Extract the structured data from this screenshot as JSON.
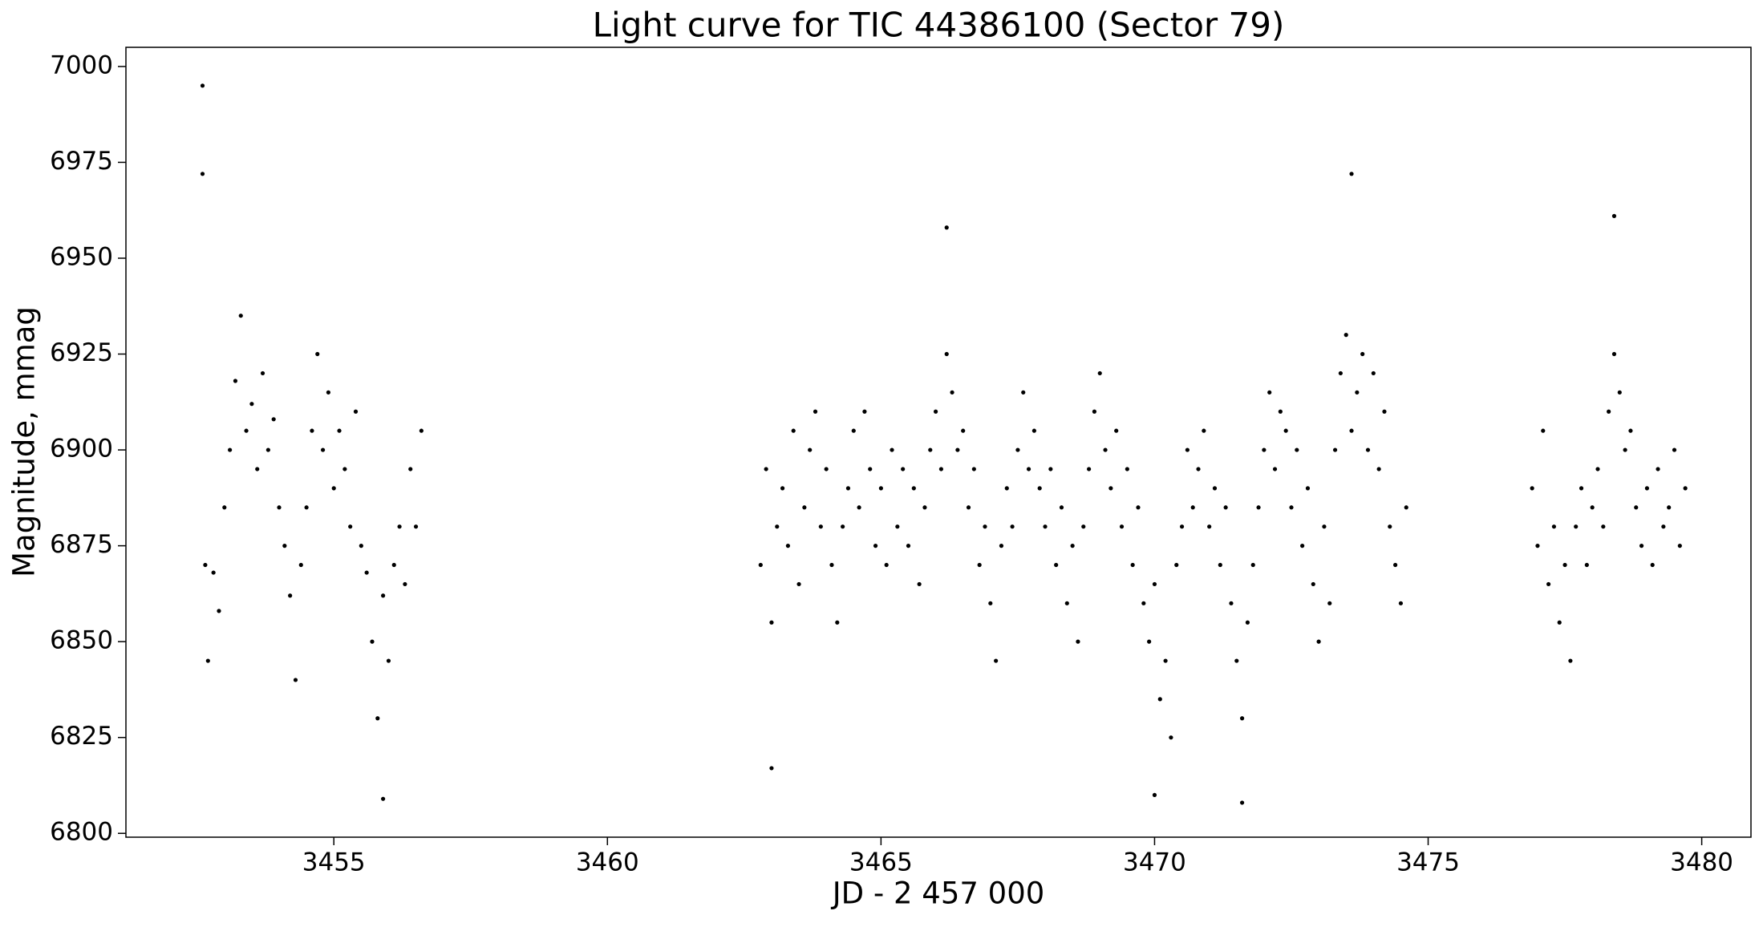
{
  "chart_data": {
    "type": "scatter",
    "title": "Light curve for TIC 44386100 (Sector 79)",
    "x_label": "JD - 2 457 000",
    "y_label": "Magnitude, mmag",
    "color": "#000000",
    "xlim": [
      3451.2,
      3480.9
    ],
    "ylim": [
      6799,
      7005
    ],
    "xticks": [
      3455,
      3460,
      3465,
      3470,
      3475,
      3480
    ],
    "yticks": [
      6800,
      6825,
      6850,
      6875,
      6900,
      6925,
      6950,
      6975,
      7000
    ],
    "grid": false,
    "x": [
      3452.6,
      3452.6,
      3452.65,
      3452.7,
      3452.8,
      3452.9,
      3453.0,
      3453.1,
      3453.2,
      3453.3,
      3453.4,
      3453.5,
      3453.6,
      3453.7,
      3453.8,
      3453.9,
      3454.0,
      3454.1,
      3454.2,
      3454.3,
      3454.4,
      3454.5,
      3454.6,
      3454.7,
      3454.8,
      3454.9,
      3455.0,
      3455.1,
      3455.2,
      3455.3,
      3455.4,
      3455.5,
      3455.6,
      3455.7,
      3455.8,
      3455.9,
      3456.0,
      3456.1,
      3456.2,
      3456.3,
      3456.4,
      3456.5,
      3456.6,
      3462.8,
      3462.9,
      3463.0,
      3463.1,
      3463.2,
      3463.3,
      3463.4,
      3463.5,
      3463.6,
      3463.7,
      3463.8,
      3463.9,
      3464.0,
      3464.1,
      3464.2,
      3464.3,
      3464.4,
      3464.5,
      3464.6,
      3464.7,
      3464.8,
      3464.9,
      3465.0,
      3465.1,
      3465.2,
      3465.3,
      3465.4,
      3465.5,
      3465.6,
      3465.7,
      3465.8,
      3465.9,
      3466.0,
      3466.1,
      3466.2,
      3466.3,
      3466.4,
      3466.5,
      3466.6,
      3466.7,
      3466.8,
      3466.9,
      3467.0,
      3467.1,
      3467.2,
      3467.3,
      3467.4,
      3467.5,
      3467.6,
      3467.7,
      3467.8,
      3467.9,
      3468.0,
      3468.1,
      3468.2,
      3468.3,
      3468.4,
      3468.5,
      3468.6,
      3468.7,
      3468.8,
      3468.9,
      3469.0,
      3469.1,
      3469.2,
      3469.3,
      3469.4,
      3469.5,
      3469.6,
      3469.7,
      3469.8,
      3469.9,
      3470.0,
      3470.1,
      3470.2,
      3470.3,
      3470.4,
      3470.5,
      3470.6,
      3470.7,
      3470.8,
      3470.9,
      3471.0,
      3471.1,
      3471.2,
      3471.3,
      3471.4,
      3471.5,
      3471.6,
      3471.7,
      3471.8,
      3471.9,
      3472.0,
      3472.1,
      3472.2,
      3472.3,
      3472.4,
      3472.5,
      3472.6,
      3472.7,
      3472.8,
      3472.9,
      3473.0,
      3473.1,
      3473.2,
      3473.3,
      3473.4,
      3473.5,
      3473.6,
      3473.7,
      3473.8,
      3473.9,
      3474.0,
      3474.1,
      3474.2,
      3474.3,
      3474.4,
      3474.5,
      3474.6,
      3476.9,
      3477.0,
      3477.1,
      3477.2,
      3477.3,
      3477.4,
      3477.5,
      3477.6,
      3477.7,
      3477.8,
      3477.9,
      3478.0,
      3478.1,
      3478.2,
      3478.3,
      3478.4,
      3478.5,
      3478.6,
      3478.7,
      3478.8,
      3478.9,
      3479.0,
      3479.1,
      3479.2,
      3479.3,
      3479.4,
      3479.5,
      3479.6,
      3479.7,
      3455.9,
      3463.0,
      3471.6,
      3473.6,
      3466.2,
      3478.4,
      3470.0
    ],
    "values": [
      6995,
      6972,
      6870,
      6845,
      6868,
      6858,
      6885,
      6900,
      6918,
      6935,
      6905,
      6912,
      6895,
      6920,
      6900,
      6908,
      6885,
      6875,
      6862,
      6840,
      6870,
      6885,
      6905,
      6925,
      6900,
      6915,
      6890,
      6905,
      6895,
      6880,
      6910,
      6875,
      6868,
      6850,
      6830,
      6862,
      6845,
      6870,
      6880,
      6865,
      6895,
      6880,
      6905,
      6870,
      6895,
      6855,
      6880,
      6890,
      6875,
      6905,
      6865,
      6885,
      6900,
      6910,
      6880,
      6895,
      6870,
      6855,
      6880,
      6890,
      6905,
      6885,
      6910,
      6895,
      6875,
      6890,
      6870,
      6900,
      6880,
      6895,
      6875,
      6890,
      6865,
      6885,
      6900,
      6910,
      6895,
      6925,
      6915,
      6900,
      6905,
      6885,
      6895,
      6870,
      6880,
      6860,
      6845,
      6875,
      6890,
      6880,
      6900,
      6915,
      6895,
      6905,
      6890,
      6880,
      6895,
      6870,
      6885,
      6860,
      6875,
      6850,
      6880,
      6895,
      6910,
      6920,
      6900,
      6890,
      6905,
      6880,
      6895,
      6870,
      6885,
      6860,
      6850,
      6865,
      6835,
      6845,
      6825,
      6870,
      6880,
      6900,
      6885,
      6895,
      6905,
      6880,
      6890,
      6870,
      6885,
      6860,
      6845,
      6830,
      6855,
      6870,
      6885,
      6900,
      6915,
      6895,
      6910,
      6905,
      6885,
      6900,
      6875,
      6890,
      6865,
      6850,
      6880,
      6860,
      6900,
      6920,
      6930,
      6905,
      6915,
      6925,
      6900,
      6920,
      6895,
      6910,
      6880,
      6870,
      6860,
      6885,
      6890,
      6875,
      6905,
      6865,
      6880,
      6855,
      6870,
      6845,
      6880,
      6890,
      6870,
      6885,
      6895,
      6880,
      6910,
      6925,
      6915,
      6900,
      6905,
      6885,
      6875,
      6890,
      6870,
      6895,
      6880,
      6885,
      6900,
      6875,
      6890,
      6809,
      6817,
      6808,
      6972,
      6958,
      6961,
      6810
    ]
  }
}
